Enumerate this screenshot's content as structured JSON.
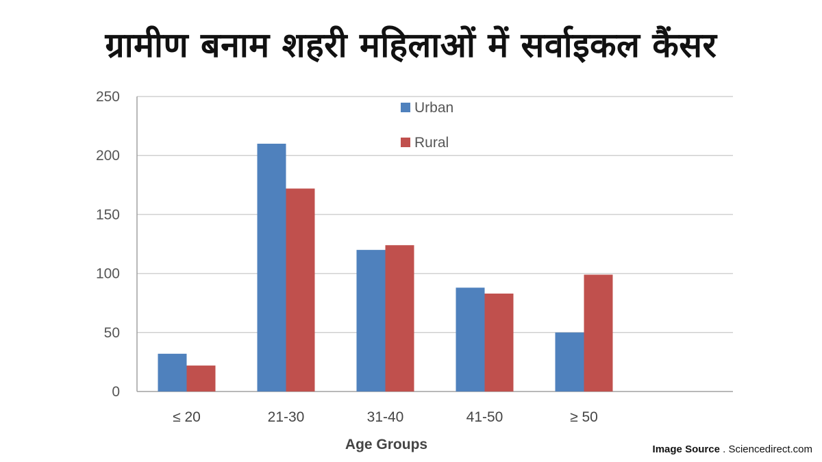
{
  "header": {
    "title": "ग्रामीण बनाम शहरी महिलाओं में सर्वाइकल कैंसर"
  },
  "footer": {
    "source_label": "Image Source",
    "source_sep": " . ",
    "source_name": "Sciencedirect.com"
  },
  "colors": {
    "urban": "#4f81bd",
    "rural": "#c0504d",
    "grid": "#d0d0d0",
    "axis": "#a0a0a0"
  },
  "chart_data": {
    "type": "bar",
    "title": "ग्रामीण बनाम शहरी महिलाओं में सर्वाइकल कैंसर",
    "xlabel": "Age Groups",
    "ylabel": "",
    "ylim": [
      0,
      250
    ],
    "yticks": [
      0,
      50,
      100,
      150,
      200,
      250
    ],
    "grid": true,
    "legend_position": "top-center",
    "categories": [
      "≤ 20",
      "21-30",
      "31-40",
      "41-50",
      "≥ 50"
    ],
    "series": [
      {
        "name": "Urban",
        "values": [
          32,
          210,
          120,
          88,
          50
        ]
      },
      {
        "name": "Rural",
        "values": [
          22,
          172,
          124,
          83,
          99
        ]
      }
    ]
  }
}
